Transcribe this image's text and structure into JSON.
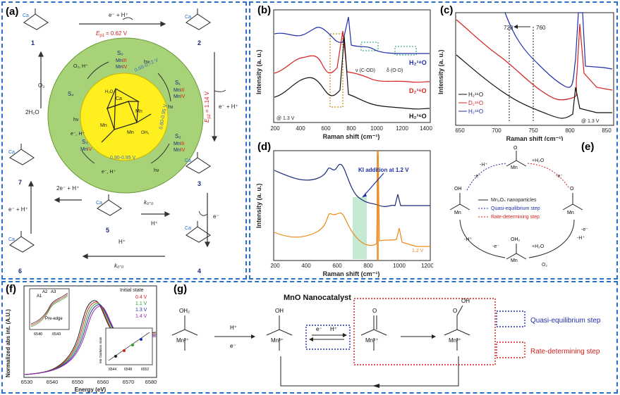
{
  "panels": {
    "a": {
      "label": "(a)",
      "ep1": "E",
      "ep1_sub": "p1",
      "ep1_val": "= 0.62 V",
      "ep2": "E",
      "ep2_sub": "p2",
      "ep2_val": "= 1.14 V",
      "step_top": "e⁻ + H⁺",
      "step_right": "e⁻ + H⁺",
      "step_left_o2": "O₂",
      "step_left_h2o": "2H₂O",
      "step_left_bottom": "e⁻ + H⁺",
      "step_mid_left": "2e⁻ + H⁺",
      "step_koo": "k₀-₀",
      "step_hplus": "H⁺",
      "step_eminus": "e⁻",
      "step_hplus_bottom": "H⁺",
      "step_koo_bottom": "k₀-₀",
      "complex_numbers": [
        "1",
        "2",
        "3",
        "4",
        "5",
        "6",
        "7"
      ],
      "cycle_s0": "S₀",
      "cycle_s1": "S₁",
      "cycle_s2": "S₂",
      "cycle_s3": "S₃",
      "cycle_s4": "S₄",
      "cycle_o2h": "O₂, H⁺",
      "cycle_v1": "0.68-0.72 V",
      "cycle_v2": "0.80-0.95 V",
      "cycle_v3": "0.90-0.95 V",
      "cycle_hv": "hν",
      "cycle_eh": "e⁻, H⁺"
    },
    "b": {
      "label": "(b)",
      "ylabel": "Intensity (a. u.)",
      "xlabel": "Raman shift (cm⁻¹)",
      "xticks": [
        "200",
        "400",
        "600",
        "800",
        "1000",
        "1200",
        "1400"
      ],
      "annot_cod": "ν (C-OD)",
      "annot_od": "δ (O-D)",
      "potential": "@ 1.3 V",
      "series_labels": [
        "H₂¹⁸O",
        "D₂¹⁶O",
        "H₂¹⁶O"
      ]
    },
    "c": {
      "label": "(c)",
      "ylabel": "Intensity (a. u.)",
      "xlabel": "Raman shift (cm⁻¹)",
      "xticks": [
        "650",
        "700",
        "750",
        "800",
        "850"
      ],
      "mark1": "728",
      "mark2": "760",
      "potential": "@ 1.3 V",
      "legend": [
        "H₂¹⁶O",
        "D₂¹⁶O",
        "H₂¹⁸O"
      ]
    },
    "d": {
      "label": "(d)",
      "ylabel": "Intensity (a. u.)",
      "xlabel": "Raman shift (cm⁻¹)",
      "xticks": [
        "200",
        "400",
        "600",
        "800",
        "1000",
        "1200"
      ],
      "annotation": "KI addition at 1.2 V",
      "potential": "1.2 V"
    },
    "e": {
      "label": "(e)",
      "legend": [
        "Mn₃O₄ nanoparticles",
        "Quasi-equilibrium step",
        "Rate-determining step"
      ],
      "step_labels": [
        "-H⁺",
        "-e⁻",
        "+H₂O",
        "-e⁻",
        "-e⁻",
        "-H⁺",
        "-H⁺",
        "-e⁻",
        "+H₂O",
        "O₂"
      ]
    },
    "f": {
      "label": "(f)",
      "ylabel": "Normalized abs int. (A.U.)",
      "xlabel": "Energy (eV)",
      "xticks": [
        "6530",
        "6540",
        "6550",
        "6560",
        "6570",
        "6580"
      ],
      "legend_title": "Initial state",
      "legend": [
        "0.4 V",
        "1.1 V",
        "1.3 V",
        "1.4 V"
      ],
      "inset_peaks": [
        "A1",
        "A2",
        "A3"
      ],
      "inset_preedge": "Pre-edge",
      "inset_xticks": [
        "6540",
        "6543"
      ],
      "inset2_ylabel": "Mn Oxidation state",
      "inset2_xticks": [
        "6544",
        "6548",
        "6552"
      ]
    },
    "g": {
      "label": "(g)",
      "title": "MnO Nanocatalyst",
      "step_h": "H⁺",
      "step_e": "e⁻",
      "qe_e": "e⁻",
      "qe_h": "H⁺",
      "mn_labels": [
        "Mn²⁺",
        "Mn³⁺",
        "Mn⁴⁺",
        "Mn³⁺"
      ],
      "legend_quasi": "Quasi-equilibrium step",
      "legend_rate": "Rate-determining step"
    }
  },
  "colors": {
    "frame": "#2a6fc9",
    "blue": "#1f2ea8",
    "red": "#d42020",
    "black": "#111111",
    "orange": "#e98a1b",
    "navy": "#1a2a78",
    "green_band": "#bfe8cf"
  }
}
